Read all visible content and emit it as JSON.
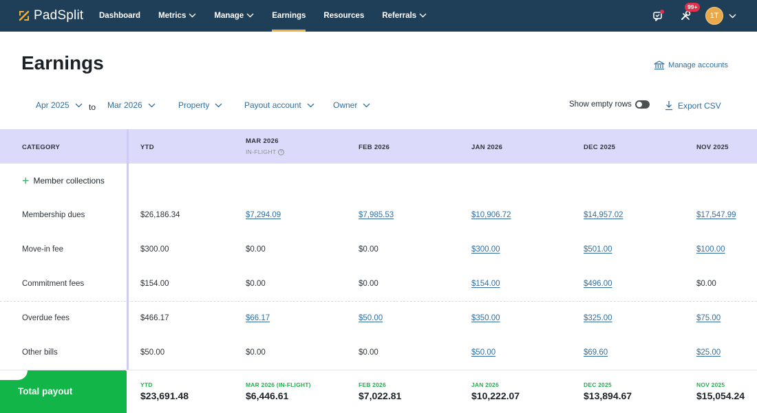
{
  "nav": {
    "logo": "PadSplit",
    "items": [
      {
        "label": "Dashboard",
        "dropdown": false,
        "active": false
      },
      {
        "label": "Metrics",
        "dropdown": true,
        "active": false
      },
      {
        "label": "Manage",
        "dropdown": true,
        "active": false
      },
      {
        "label": "Earnings",
        "dropdown": false,
        "active": true
      },
      {
        "label": "Resources",
        "dropdown": false,
        "active": false
      },
      {
        "label": "Referrals",
        "dropdown": true,
        "active": false
      }
    ],
    "notification_badge": "99+",
    "avatar_initials": "1T"
  },
  "header": {
    "title": "Earnings",
    "manage_accounts": "Manage accounts"
  },
  "filters": {
    "from": "Apr 2025",
    "to_word": "to",
    "to": "Mar 2026",
    "property": "Property",
    "payout_account": "Payout account",
    "owner": "Owner",
    "show_empty_rows": "Show empty rows",
    "export": "Export CSV"
  },
  "table": {
    "columns": [
      "CATEGORY",
      "YTD",
      "MAR 2026",
      "FEB 2026",
      "JAN 2026",
      "DEC 2025",
      "NOV 2025"
    ],
    "in_flight_note": "IN-FLIGHT",
    "section": "Member collections",
    "rows": [
      {
        "label": "Membership dues",
        "values": [
          "$26,186.34",
          "$7,294.09",
          "$7,985.53",
          "$10,906.72",
          "$14,957.02",
          "$17,547.99"
        ],
        "links": [
          false,
          true,
          true,
          true,
          true,
          true
        ]
      },
      {
        "label": "Move-in fee",
        "values": [
          "$300.00",
          "$0.00",
          "$0.00",
          "$300.00",
          "$501.00",
          "$100.00"
        ],
        "links": [
          false,
          false,
          false,
          true,
          true,
          true
        ]
      },
      {
        "label": "Commitment fees",
        "values": [
          "$154.00",
          "$0.00",
          "$0.00",
          "$154.00",
          "$496.00",
          "$0.00"
        ],
        "links": [
          false,
          false,
          false,
          true,
          true,
          false
        ]
      },
      {
        "label": "Overdue fees",
        "values": [
          "$466.17",
          "$66.17",
          "$50.00",
          "$350.00",
          "$325.00",
          "$75.00"
        ],
        "links": [
          false,
          true,
          true,
          true,
          true,
          true
        ]
      },
      {
        "label": "Other bills",
        "values": [
          "$50.00",
          "$0.00",
          "$0.00",
          "$50.00",
          "$69.60",
          "$25.00"
        ],
        "links": [
          false,
          false,
          false,
          true,
          true,
          true
        ]
      }
    ]
  },
  "totals": {
    "label": "Total payout",
    "columns": [
      {
        "label": "YTD",
        "value": "$23,691.48"
      },
      {
        "label": "MAR 2026 (IN-FLIGHT)",
        "value": "$6,446.61"
      },
      {
        "label": "FEB 2026",
        "value": "$7,022.81"
      },
      {
        "label": "JAN 2026",
        "value": "$10,222.07"
      },
      {
        "label": "DEC 2025",
        "value": "$13,894.67"
      },
      {
        "label": "NOV 2025",
        "value": "$15,054.24"
      }
    ]
  },
  "colors": {
    "nav_bg": "#1f3f59",
    "active_underline": "#f0b23a",
    "link": "#2f6fa0",
    "header_band": "#dcdafa",
    "total_green": "#11b548"
  }
}
